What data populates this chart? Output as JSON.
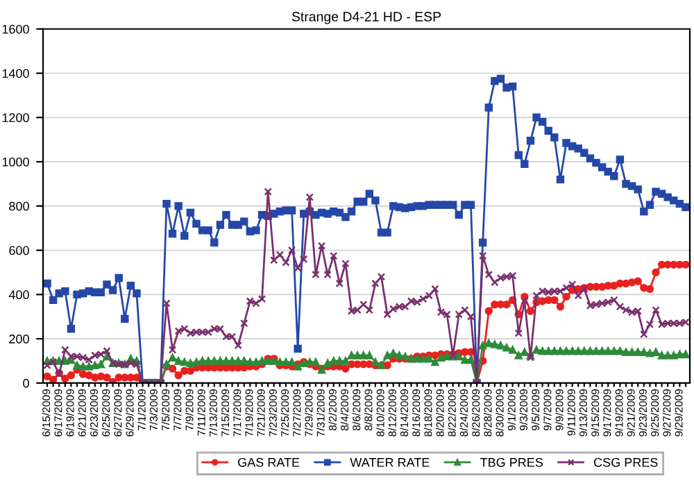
{
  "chart_data": {
    "type": "line",
    "title": "Strange D4-21 HD - ESP",
    "categories": [
      "6/15/2009",
      null,
      "6/17/2009",
      null,
      "6/19/2009",
      null,
      "6/21/2009",
      null,
      "6/23/2009",
      null,
      "6/25/2009",
      null,
      "6/27/2009",
      null,
      "6/29/2009",
      null,
      "7/1/2009",
      null,
      "7/3/2009",
      null,
      "7/5/2009",
      null,
      "7/7/2009",
      null,
      "7/9/2009",
      null,
      "7/11/2009",
      null,
      "7/13/2009",
      null,
      "7/15/2009",
      null,
      "7/17/2009",
      null,
      "7/19/2009",
      null,
      "7/21/2009",
      null,
      "7/23/2009",
      null,
      "7/25/2009",
      null,
      "7/27/2009",
      null,
      "7/29/2009",
      null,
      "7/31/2009",
      null,
      "8/2/2009",
      null,
      "8/4/2009",
      null,
      "8/6/2009",
      null,
      "8/8/2009",
      null,
      "8/10/2009",
      null,
      "8/12/2009",
      null,
      "8/14/2009",
      null,
      "8/16/2009",
      null,
      "8/18/2009",
      null,
      "8/20/2009",
      null,
      "8/22/2009",
      null,
      "8/24/2009",
      null,
      "8/26/2009",
      null,
      "8/28/2009",
      null,
      "8/30/2009",
      null,
      "9/1/2009",
      null,
      "9/3/2009",
      null,
      "9/5/2009",
      null,
      "9/7/2009",
      null,
      "9/9/2009",
      null,
      "9/11/2009",
      null,
      "9/13/2009",
      null,
      "9/15/2009",
      null,
      "9/17/2009",
      null,
      "9/19/2009",
      null,
      "9/21/2009",
      null,
      "9/23/2009",
      null,
      "9/25/2009",
      null,
      "9/27/2009",
      null,
      "9/29/2009",
      null
    ],
    "series": [
      {
        "name": "GAS RATE",
        "color": "#e8211f",
        "marker": "circle",
        "values": [
          30,
          15,
          45,
          20,
          35,
          60,
          40,
          35,
          25,
          30,
          25,
          5,
          25,
          25,
          25,
          25,
          0,
          0,
          0,
          0,
          75,
          65,
          35,
          55,
          55,
          70,
          70,
          70,
          70,
          70,
          70,
          70,
          70,
          70,
          75,
          75,
          85,
          110,
          110,
          80,
          80,
          75,
          85,
          95,
          85,
          75,
          65,
          75,
          75,
          75,
          65,
          85,
          85,
          85,
          85,
          80,
          80,
          80,
          110,
          110,
          110,
          110,
          120,
          120,
          125,
          125,
          130,
          130,
          130,
          135,
          140,
          140,
          0,
          100,
          325,
          355,
          355,
          355,
          375,
          310,
          390,
          325,
          365,
          370,
          375,
          375,
          345,
          390,
          420,
          425,
          430,
          435,
          435,
          435,
          440,
          440,
          450,
          450,
          455,
          460,
          430,
          425,
          500,
          535,
          535,
          535,
          535,
          535
        ]
      },
      {
        "name": "WATER RATE",
        "color": "#2548a8",
        "marker": "square",
        "values": [
          450,
          375,
          405,
          415,
          245,
          400,
          405,
          415,
          410,
          410,
          445,
          420,
          475,
          290,
          440,
          405,
          0,
          0,
          0,
          0,
          810,
          675,
          800,
          665,
          770,
          720,
          690,
          690,
          635,
          715,
          760,
          715,
          715,
          730,
          685,
          690,
          760,
          755,
          765,
          775,
          780,
          780,
          155,
          765,
          775,
          760,
          770,
          765,
          775,
          770,
          750,
          775,
          820,
          820,
          855,
          825,
          680,
          680,
          800,
          795,
          790,
          795,
          800,
          800,
          805,
          805,
          805,
          805,
          805,
          760,
          805,
          805,
          0,
          635,
          1245,
          1365,
          1375,
          1335,
          1340,
          1030,
          990,
          1095,
          1200,
          1180,
          1140,
          1110,
          920,
          1085,
          1070,
          1060,
          1040,
          1015,
          995,
          975,
          955,
          935,
          1010,
          900,
          890,
          875,
          775,
          805,
          865,
          855,
          840,
          825,
          810,
          795
        ]
      },
      {
        "name": "TBG PRES",
        "color": "#2e8b3a",
        "marker": "triangle",
        "values": [
          100,
          100,
          100,
          100,
          105,
          80,
          75,
          75,
          80,
          85,
          120,
          90,
          90,
          85,
          110,
          100,
          0,
          0,
          0,
          0,
          85,
          115,
          100,
          95,
          90,
          95,
          100,
          100,
          100,
          100,
          100,
          100,
          100,
          100,
          95,
          95,
          100,
          100,
          100,
          95,
          95,
          95,
          75,
          90,
          95,
          95,
          60,
          90,
          100,
          100,
          100,
          125,
          125,
          125,
          125,
          95,
          80,
          125,
          135,
          125,
          120,
          110,
          110,
          110,
          110,
          95,
          115,
          120,
          120,
          120,
          105,
          105,
          0,
          170,
          180,
          175,
          170,
          160,
          150,
          125,
          140,
          125,
          150,
          145,
          145,
          145,
          145,
          145,
          145,
          145,
          145,
          145,
          145,
          145,
          145,
          145,
          145,
          140,
          140,
          140,
          140,
          135,
          140,
          125,
          125,
          125,
          130,
          130
        ]
      },
      {
        "name": "CSG PRES",
        "color": "#7a2f6e",
        "marker": "cross",
        "values": [
          80,
          95,
          40,
          150,
          120,
          120,
          115,
          105,
          125,
          130,
          145,
          90,
          85,
          85,
          90,
          85,
          0,
          0,
          0,
          0,
          360,
          150,
          235,
          245,
          225,
          230,
          230,
          230,
          245,
          245,
          210,
          210,
          170,
          270,
          370,
          360,
          380,
          865,
          555,
          580,
          545,
          600,
          520,
          560,
          840,
          490,
          620,
          490,
          575,
          450,
          540,
          325,
          330,
          355,
          330,
          450,
          480,
          310,
          335,
          345,
          345,
          370,
          365,
          380,
          395,
          425,
          320,
          310,
          125,
          310,
          330,
          300,
          0,
          575,
          490,
          455,
          475,
          480,
          485,
          225,
          370,
          115,
          395,
          415,
          410,
          415,
          415,
          430,
          445,
          395,
          425,
          350,
          355,
          360,
          365,
          375,
          345,
          330,
          320,
          325,
          220,
          265,
          330,
          265,
          270,
          270,
          270,
          275
        ]
      }
    ],
    "ylim": [
      0,
      1600
    ],
    "yticks": [
      0,
      200,
      400,
      600,
      800,
      1000,
      1200,
      1400,
      1600
    ],
    "grid": "y",
    "legend": "bottom",
    "line_style": "solid"
  }
}
